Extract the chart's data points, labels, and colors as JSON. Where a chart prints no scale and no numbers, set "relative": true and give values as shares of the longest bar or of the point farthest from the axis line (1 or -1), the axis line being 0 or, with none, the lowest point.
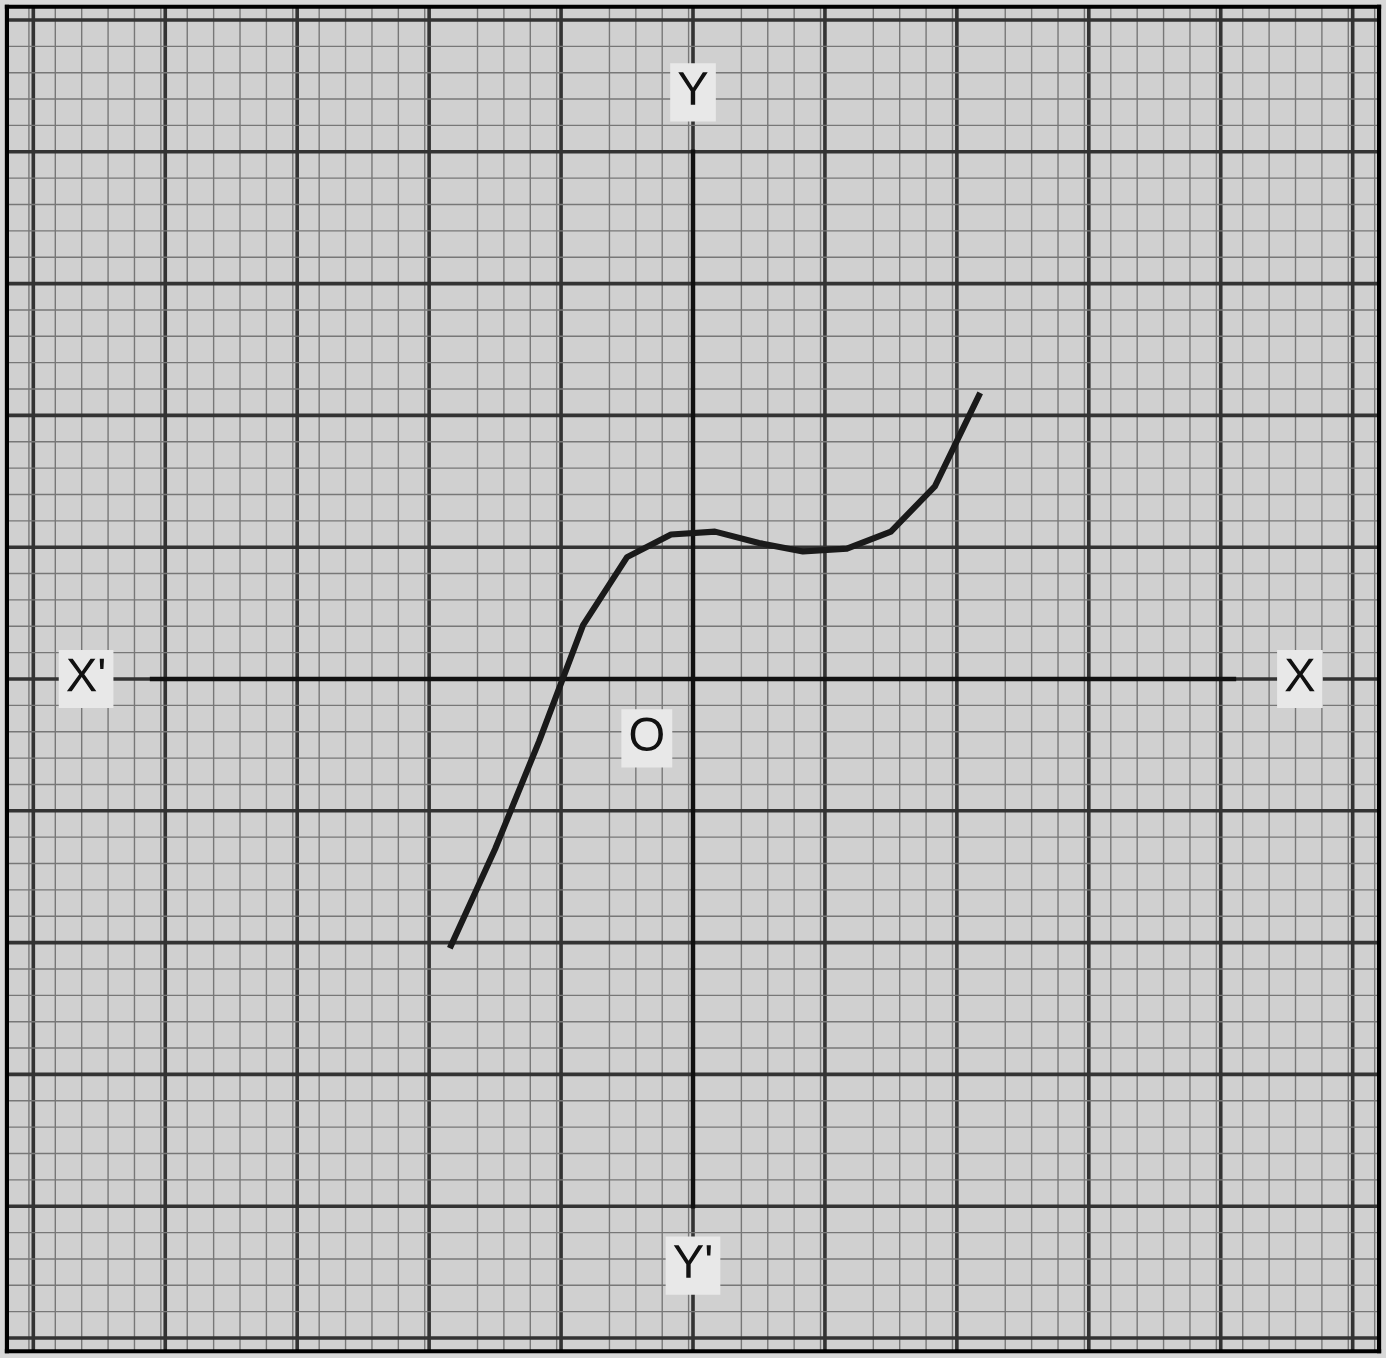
{
  "chart_data": {
    "type": "line",
    "relative": true,
    "grid": true,
    "marker": "none",
    "line_style": "solid",
    "categories": [
      null,
      null,
      null,
      null,
      null,
      null,
      null,
      null,
      null,
      null,
      null,
      null,
      null
    ],
    "series": [
      {
        "color": "#1a1a1a",
        "values": [
          -0.94,
          -0.6,
          -0.22,
          0.19,
          0.43,
          0.51,
          0.52,
          0.48,
          0.45,
          0.46,
          0.52,
          0.68,
          1
        ]
      }
    ],
    "annotations": [
      "X'",
      "X",
      "Y",
      "Y'",
      "O"
    ]
  }
}
